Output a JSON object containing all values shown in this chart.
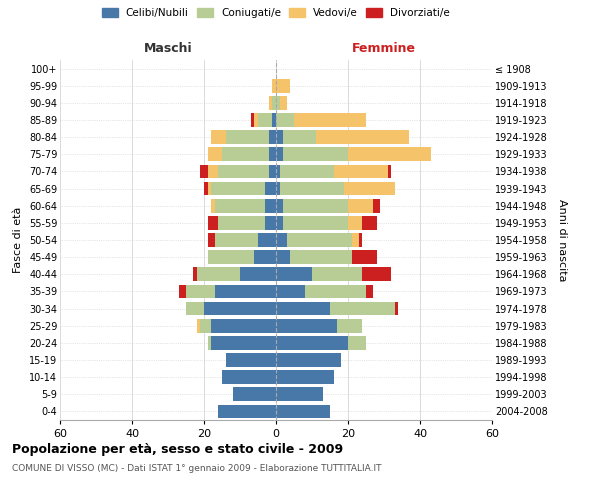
{
  "age_groups": [
    "0-4",
    "5-9",
    "10-14",
    "15-19",
    "20-24",
    "25-29",
    "30-34",
    "35-39",
    "40-44",
    "45-49",
    "50-54",
    "55-59",
    "60-64",
    "65-69",
    "70-74",
    "75-79",
    "80-84",
    "85-89",
    "90-94",
    "95-99",
    "100+"
  ],
  "birth_years": [
    "2004-2008",
    "1999-2003",
    "1994-1998",
    "1989-1993",
    "1984-1988",
    "1979-1983",
    "1974-1978",
    "1969-1973",
    "1964-1968",
    "1959-1963",
    "1954-1958",
    "1949-1953",
    "1944-1948",
    "1939-1943",
    "1934-1938",
    "1929-1933",
    "1924-1928",
    "1919-1923",
    "1914-1918",
    "1909-1913",
    "≤ 1908"
  ],
  "maschi": {
    "celibi": [
      16,
      12,
      15,
      14,
      18,
      18,
      20,
      17,
      10,
      6,
      5,
      3,
      3,
      3,
      2,
      2,
      2,
      1,
      0,
      0,
      0
    ],
    "coniugati": [
      0,
      0,
      0,
      0,
      1,
      3,
      5,
      8,
      12,
      13,
      12,
      13,
      14,
      15,
      14,
      13,
      12,
      4,
      1,
      0,
      0
    ],
    "vedovi": [
      0,
      0,
      0,
      0,
      0,
      1,
      0,
      0,
      0,
      0,
      0,
      0,
      1,
      1,
      3,
      4,
      4,
      1,
      1,
      1,
      0
    ],
    "divorziati": [
      0,
      0,
      0,
      0,
      0,
      0,
      0,
      2,
      1,
      0,
      2,
      3,
      0,
      1,
      2,
      0,
      0,
      1,
      0,
      0,
      0
    ]
  },
  "femmine": {
    "nubili": [
      15,
      13,
      16,
      18,
      20,
      17,
      15,
      8,
      10,
      4,
      3,
      2,
      2,
      1,
      1,
      2,
      2,
      0,
      0,
      0,
      0
    ],
    "coniugate": [
      0,
      0,
      0,
      0,
      5,
      7,
      18,
      17,
      14,
      17,
      18,
      18,
      18,
      18,
      15,
      18,
      9,
      5,
      1,
      0,
      0
    ],
    "vedove": [
      0,
      0,
      0,
      0,
      0,
      0,
      0,
      0,
      0,
      0,
      2,
      4,
      7,
      14,
      15,
      23,
      26,
      20,
      2,
      4,
      0
    ],
    "divorziate": [
      0,
      0,
      0,
      0,
      0,
      0,
      1,
      2,
      8,
      7,
      1,
      4,
      2,
      0,
      1,
      0,
      0,
      0,
      0,
      0,
      0
    ]
  },
  "colors": {
    "celibi": "#4878a8",
    "coniugati": "#b8cc96",
    "vedovi": "#f5c46a",
    "divorziati": "#cc2020"
  },
  "title": "Popolazione per età, sesso e stato civile - 2009",
  "subtitle": "COMUNE DI VISSO (MC) - Dati ISTAT 1° gennaio 2009 - Elaborazione TUTTITALIA.IT",
  "xlabel_left": "Maschi",
  "xlabel_right": "Femmine",
  "ylabel_left": "Fasce di età",
  "ylabel_right": "Anni di nascita",
  "xlim": 60,
  "bg_color": "#ffffff",
  "grid_color": "#cccccc"
}
